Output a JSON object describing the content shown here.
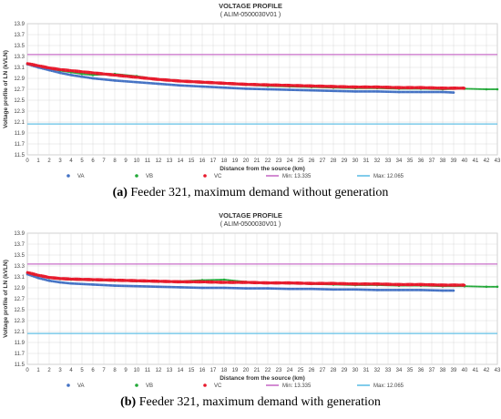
{
  "chart_data": [
    {
      "type": "scatter",
      "title": "VOLTAGE PROFILE",
      "subtitle": "( ALIM-0500030V01 )",
      "xlabel": "Distance from the source (km)",
      "ylabel": "Voltage profile of LN (kVLN)",
      "xlim": [
        0,
        43
      ],
      "ylim": [
        11.5,
        13.9
      ],
      "xticks": [
        "0",
        "1",
        "2",
        "3",
        "4",
        "5",
        "6",
        "7",
        "8",
        "9",
        "10",
        "11",
        "12",
        "13",
        "14",
        "15",
        "16",
        "17",
        "18",
        "19",
        "20",
        "21",
        "22",
        "23",
        "24",
        "25",
        "26",
        "27",
        "28",
        "29",
        "30",
        "31",
        "32",
        "33",
        "34",
        "35",
        "36",
        "37",
        "38",
        "39",
        "40",
        "41",
        "42",
        "43"
      ],
      "yticks": [
        "11.5",
        "11.7",
        "11.9",
        "12.1",
        "12.3",
        "12.5",
        "12.7",
        "12.9",
        "13.1",
        "13.3",
        "13.5",
        "13.7",
        "13.9"
      ],
      "grid": true,
      "legend_position": "bottom",
      "series": [
        {
          "name": "VA",
          "kind": "points",
          "color": "#4472c4",
          "x": [
            0,
            1,
            2,
            3,
            4,
            5,
            6,
            8,
            10,
            12,
            14,
            16,
            18,
            20,
            22,
            24,
            26,
            28,
            30,
            32,
            34,
            36,
            38,
            39
          ],
          "y": [
            13.16,
            13.1,
            13.05,
            13.0,
            12.96,
            12.93,
            12.9,
            12.86,
            12.83,
            12.8,
            12.77,
            12.75,
            12.73,
            12.71,
            12.7,
            12.69,
            12.68,
            12.67,
            12.66,
            12.66,
            12.65,
            12.65,
            12.65,
            12.64
          ]
        },
        {
          "name": "VB",
          "kind": "points",
          "color": "#22a838",
          "x": [
            0,
            1,
            2,
            3,
            4,
            5,
            6,
            8,
            10,
            12,
            14,
            16,
            18,
            20,
            22,
            24,
            26,
            28,
            30,
            32,
            34,
            36,
            38,
            40,
            42,
            43
          ],
          "y": [
            13.16,
            13.12,
            13.08,
            13.04,
            13.01,
            12.98,
            12.96,
            12.98,
            12.94,
            12.88,
            12.85,
            12.82,
            12.8,
            12.78,
            12.76,
            12.75,
            12.74,
            12.73,
            12.72,
            12.72,
            12.71,
            12.71,
            12.7,
            12.71,
            12.7,
            12.7
          ]
        },
        {
          "name": "VC",
          "kind": "points",
          "color": "#e8192c",
          "x": [
            0,
            1,
            2,
            3,
            4,
            5,
            6,
            8,
            10,
            12,
            14,
            16,
            18,
            20,
            22,
            24,
            26,
            28,
            30,
            32,
            34,
            36,
            38,
            40
          ],
          "y": [
            13.17,
            13.13,
            13.09,
            13.06,
            13.04,
            13.02,
            13.0,
            12.96,
            12.92,
            12.88,
            12.85,
            12.83,
            12.81,
            12.79,
            12.78,
            12.77,
            12.76,
            12.75,
            12.74,
            12.74,
            12.73,
            12.73,
            12.72,
            12.72
          ]
        },
        {
          "name": "Min: 13.335",
          "kind": "hline",
          "color": "#c86fc8",
          "value": 13.335
        },
        {
          "name": "Max: 12.065",
          "kind": "hline",
          "color": "#62c0e6",
          "value": 12.065
        }
      ]
    },
    {
      "type": "scatter",
      "title": "VOLTAGE PROFILE",
      "subtitle": "( ALIM-0500030V01 )",
      "xlabel": "Distance from the source (km)",
      "ylabel": "Voltage profile of LN (kVLN)",
      "xlim": [
        0,
        43
      ],
      "ylim": [
        11.5,
        13.9
      ],
      "xticks": [
        "0",
        "1",
        "2",
        "3",
        "4",
        "5",
        "6",
        "7",
        "8",
        "9",
        "10",
        "11",
        "12",
        "13",
        "14",
        "15",
        "16",
        "17",
        "18",
        "19",
        "20",
        "21",
        "22",
        "23",
        "24",
        "25",
        "26",
        "27",
        "28",
        "29",
        "30",
        "31",
        "32",
        "33",
        "34",
        "35",
        "36",
        "37",
        "38",
        "39",
        "40",
        "41",
        "42",
        "43"
      ],
      "yticks": [
        "11.5",
        "11.7",
        "11.9",
        "12.1",
        "12.3",
        "12.5",
        "12.7",
        "12.9",
        "13.1",
        "13.3",
        "13.5",
        "13.7",
        "13.9"
      ],
      "grid": true,
      "legend_position": "bottom",
      "series": [
        {
          "name": "VA",
          "kind": "points",
          "color": "#4472c4",
          "x": [
            0,
            1,
            2,
            3,
            4,
            6,
            8,
            10,
            12,
            14,
            16,
            18,
            20,
            22,
            24,
            26,
            28,
            30,
            32,
            34,
            36,
            38,
            39
          ],
          "y": [
            13.15,
            13.08,
            13.03,
            13.0,
            12.98,
            12.96,
            12.94,
            12.93,
            12.92,
            12.91,
            12.9,
            12.9,
            12.89,
            12.89,
            12.88,
            12.88,
            12.87,
            12.87,
            12.86,
            12.86,
            12.86,
            12.85,
            12.85
          ]
        },
        {
          "name": "VB",
          "kind": "points",
          "color": "#22a838",
          "x": [
            0,
            1,
            2,
            3,
            4,
            6,
            8,
            10,
            12,
            14,
            16,
            18,
            20,
            22,
            24,
            26,
            28,
            30,
            32,
            34,
            36,
            38,
            40,
            42,
            43
          ],
          "y": [
            13.17,
            13.12,
            13.08,
            13.06,
            13.05,
            13.04,
            13.03,
            13.02,
            13.01,
            13.02,
            13.04,
            13.05,
            13.01,
            12.99,
            12.98,
            12.97,
            12.96,
            12.95,
            12.95,
            12.94,
            12.94,
            12.93,
            12.93,
            12.92,
            12.92
          ]
        },
        {
          "name": "VC",
          "kind": "points",
          "color": "#e8192c",
          "x": [
            0,
            1,
            2,
            3,
            4,
            6,
            8,
            10,
            12,
            14,
            16,
            18,
            20,
            22,
            24,
            26,
            28,
            30,
            32,
            34,
            36,
            38,
            40
          ],
          "y": [
            13.18,
            13.13,
            13.09,
            13.07,
            13.06,
            13.05,
            13.04,
            13.03,
            13.02,
            13.01,
            13.01,
            13.0,
            13.0,
            12.99,
            12.99,
            12.98,
            12.98,
            12.97,
            12.97,
            12.96,
            12.96,
            12.95,
            12.95
          ]
        },
        {
          "name": "Min: 13.335",
          "kind": "hline",
          "color": "#c86fc8",
          "value": 13.335
        },
        {
          "name": "Max: 12.065",
          "kind": "hline",
          "color": "#62c0e6",
          "value": 12.065
        }
      ]
    }
  ],
  "captions": [
    {
      "tag": "(a)",
      "text": " Feeder 321, maximum demand without generation"
    },
    {
      "tag": "(b)",
      "text": " Feeder 321, maximum demand with generation"
    }
  ]
}
